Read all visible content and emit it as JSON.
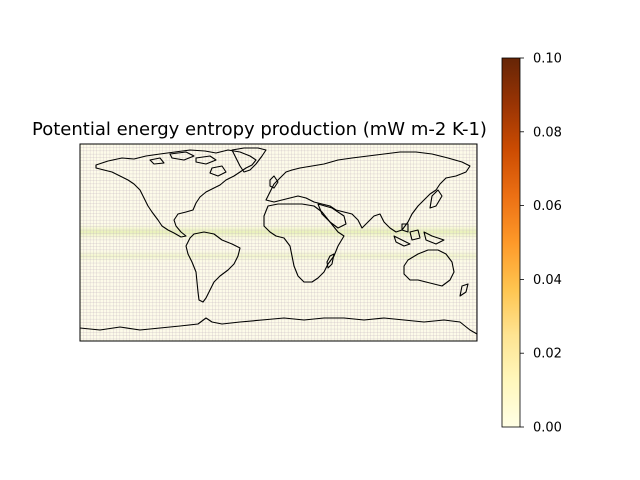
{
  "title": "Potential energy entropy production (mW m-2 K-1)",
  "colorbar": {
    "min": 0.0,
    "max": 0.1,
    "ticks": [
      "0.00",
      "0.02",
      "0.04",
      "0.06",
      "0.08",
      "0.10"
    ],
    "colormap": "YlOrBr",
    "stops": [
      "#ffffe5",
      "#fff7bc",
      "#fee391",
      "#fec44f",
      "#fe9929",
      "#ec7014",
      "#cc4c02",
      "#993404",
      "#662506"
    ]
  },
  "map": {
    "projection": "PlateCarree",
    "extent": [
      -180,
      180,
      -90,
      90
    ],
    "coastlines": true,
    "field_description_values": {
      "background_level": 0.004,
      "tropical_band_level": 0.012,
      "grid_mesh_color": "#b9a9b9"
    }
  }
}
